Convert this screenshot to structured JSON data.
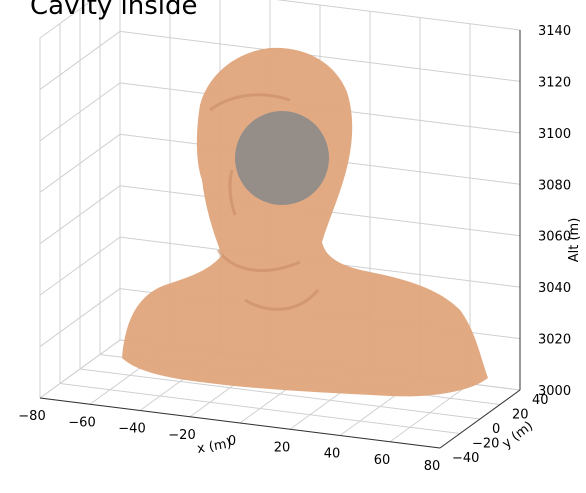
{
  "chart_data": {
    "type": "mesh3d",
    "title": "Cavity inside",
    "xlabel": "x (m)",
    "ylabel": "y (m)",
    "zlabel": "Alt (m)",
    "xlim": [
      -80,
      80
    ],
    "ylim": [
      -40,
      40
    ],
    "zlim": [
      3000,
      3140
    ],
    "xticks": [
      {
        "value": -80,
        "label": "−80"
      },
      {
        "value": -60,
        "label": "−60"
      },
      {
        "value": -40,
        "label": "−40"
      },
      {
        "value": -20,
        "label": "−20"
      },
      0,
      20,
      40,
      60,
      80
    ],
    "yticks": [
      {
        "value": -40,
        "label": "−40"
      },
      {
        "value": -20,
        "label": "−20"
      },
      0,
      20,
      40
    ],
    "zticks": [
      3000,
      3020,
      3040,
      3060,
      3080,
      3100,
      3120,
      3140
    ],
    "grid": true,
    "mesh_color": "#dfa57c",
    "cavity_color": "#8c8a88"
  }
}
